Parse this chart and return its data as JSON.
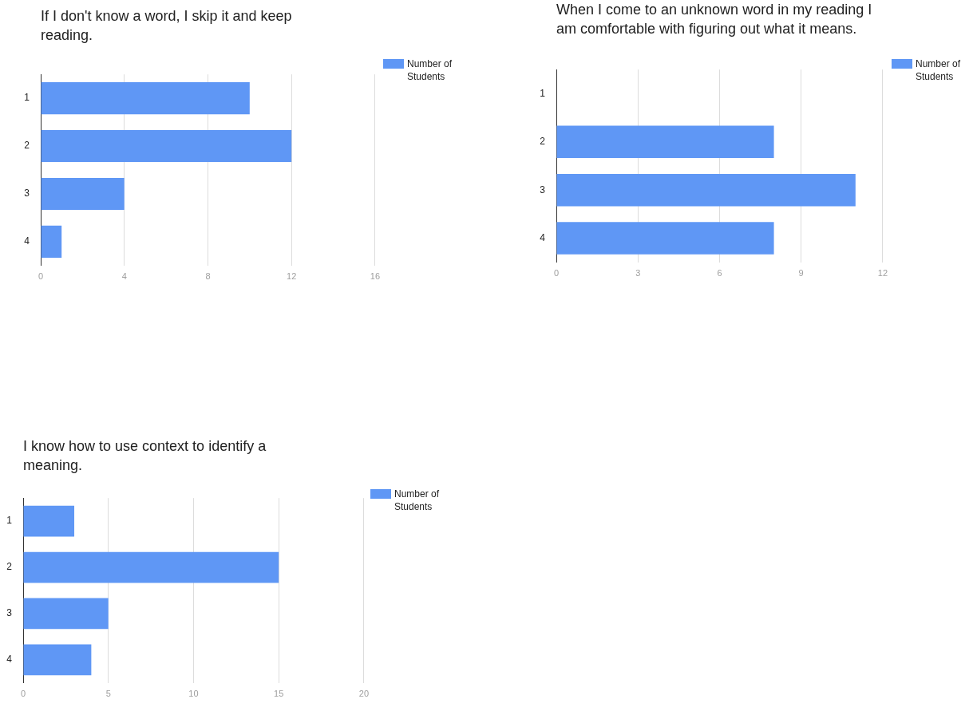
{
  "chart_data": [
    {
      "type": "bar",
      "orientation": "horizontal",
      "title": "If I don't know a word, I skip it and keep reading.",
      "categories": [
        "1",
        "2",
        "3",
        "4"
      ],
      "series": [
        {
          "name": "Number of Students",
          "color": "#5f97f5",
          "values": [
            10,
            12,
            4,
            1
          ]
        }
      ],
      "xlim": [
        0,
        16
      ],
      "xticks": [
        0,
        4,
        8,
        12,
        16
      ],
      "grid": "x",
      "legend": "top right"
    },
    {
      "type": "bar",
      "orientation": "horizontal",
      "title": "When I come to an unknown word in my reading I am comfortable with figuring out what it means.",
      "categories": [
        "1",
        "2",
        "3",
        "4"
      ],
      "series": [
        {
          "name": "Number of Students",
          "color": "#5f97f5",
          "values": [
            0,
            8,
            11,
            8
          ]
        }
      ],
      "xlim": [
        0,
        12
      ],
      "xticks": [
        0,
        3,
        6,
        9,
        12
      ],
      "grid": "x",
      "legend": "top right"
    },
    {
      "type": "bar",
      "orientation": "horizontal",
      "title": "I know how to use context to identify a meaning.",
      "categories": [
        "1",
        "2",
        "3",
        "4"
      ],
      "series": [
        {
          "name": "Number of Students",
          "color": "#5f97f5",
          "values": [
            3,
            15,
            5,
            4
          ]
        }
      ],
      "xlim": [
        0,
        20
      ],
      "xticks": [
        0,
        5,
        10,
        15,
        20
      ],
      "grid": "x",
      "legend": "top right"
    }
  ]
}
